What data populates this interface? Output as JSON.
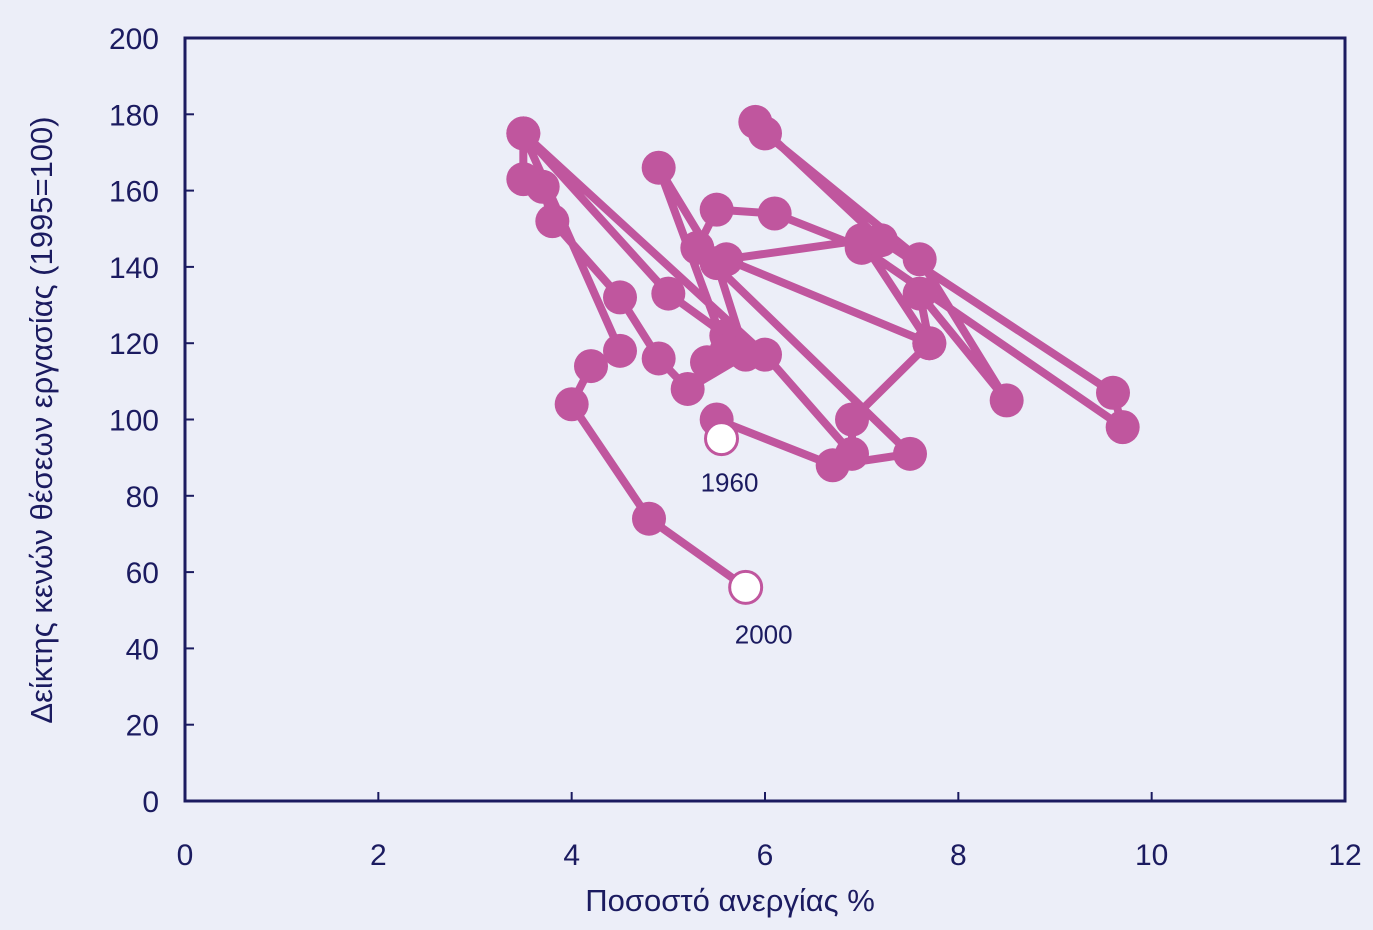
{
  "chart_data": {
    "type": "scatter",
    "xlabel": "Ποσοστό ανεργίας %",
    "ylabel": "Δείκτης κενών θέσεων εργασίας (1995=100)",
    "xlim": [
      0,
      12
    ],
    "ylim": [
      0,
      200
    ],
    "xticks": [
      0,
      2,
      4,
      6,
      8,
      10,
      12
    ],
    "yticks": [
      0,
      20,
      40,
      60,
      80,
      100,
      120,
      140,
      160,
      180,
      200
    ],
    "grid": false,
    "connected": true,
    "marker_color": "#c0569e",
    "axis_color": "#1b1b60",
    "background": "#eceef8",
    "series": [
      {
        "values": [
          [
            5.5,
            95
          ],
          [
            5.5,
            100
          ],
          [
            6.7,
            88
          ],
          [
            7.5,
            91
          ],
          [
            5.3,
            145
          ],
          [
            5.5,
            155
          ],
          [
            6.1,
            154
          ],
          [
            7.0,
            145
          ],
          [
            9.7,
            98
          ],
          [
            9.6,
            107
          ],
          [
            7.2,
            147
          ],
          [
            5.9,
            178
          ],
          [
            6.0,
            175
          ],
          [
            7.6,
            142
          ],
          [
            8.5,
            105
          ],
          [
            7.6,
            133
          ],
          [
            7.7,
            120
          ],
          [
            7.0,
            147
          ],
          [
            5.6,
            142
          ],
          [
            7.7,
            120
          ],
          [
            6.9,
            100
          ],
          [
            6.9,
            91
          ],
          [
            6.0,
            117
          ],
          [
            3.5,
            175
          ],
          [
            5.0,
            133
          ],
          [
            5.6,
            122
          ],
          [
            5.4,
            115
          ],
          [
            5.6,
            118
          ],
          [
            4.9,
            166
          ],
          [
            5.5,
            141
          ],
          [
            5.8,
            117
          ],
          [
            5.2,
            108
          ],
          [
            4.9,
            116
          ],
          [
            4.5,
            132
          ],
          [
            3.8,
            152
          ],
          [
            3.7,
            161
          ],
          [
            3.5,
            163
          ],
          [
            3.5,
            175
          ],
          [
            4.5,
            118
          ],
          [
            4.2,
            114
          ],
          [
            4.0,
            104
          ],
          [
            4.8,
            74
          ],
          [
            5.8,
            56
          ]
        ]
      }
    ],
    "start_year": "1960",
    "end_year": "2000",
    "start_point": [
      5.55,
      95
    ],
    "end_point": [
      5.8,
      56
    ]
  }
}
